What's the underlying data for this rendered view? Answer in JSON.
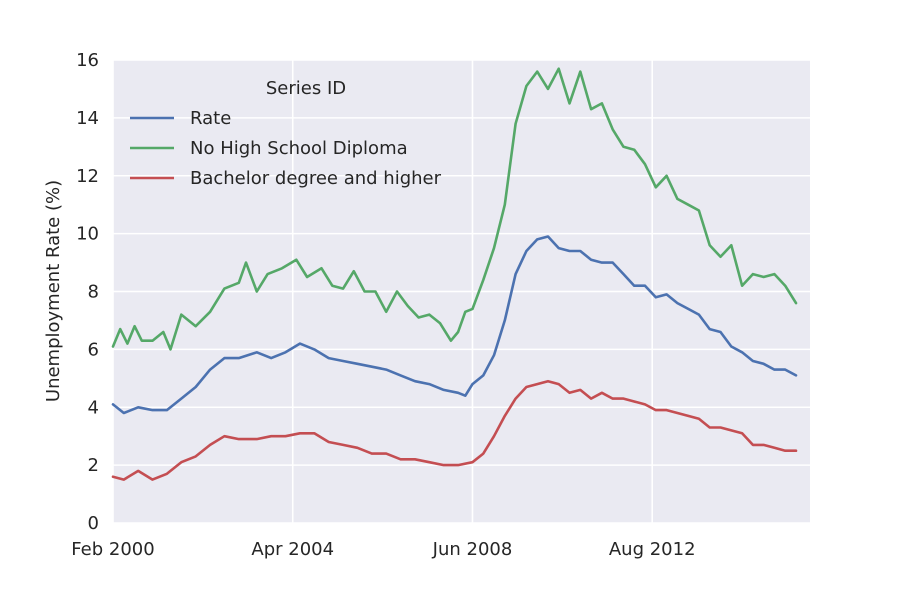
{
  "chart_data": {
    "type": "line",
    "title": "",
    "xlabel": "",
    "ylabel": "Unemployment Rate (%)",
    "x_start": "Feb 2000",
    "x_end": "Dec 2015",
    "x_ticks": [
      {
        "date": "2000-02",
        "label": "Feb 2000"
      },
      {
        "date": "2004-04",
        "label": "Apr 2004"
      },
      {
        "date": "2008-06",
        "label": "Jun 2008"
      },
      {
        "date": "2012-08",
        "label": "Aug 2012"
      }
    ],
    "ylim": [
      0,
      16
    ],
    "y_ticks": [
      0,
      2,
      4,
      6,
      8,
      10,
      12,
      14,
      16
    ],
    "grid": true,
    "legend": {
      "title": "Series ID",
      "position": "upper-left"
    },
    "series": [
      {
        "name": "Rate",
        "color": "#4c72b0",
        "points": [
          [
            "2000-02",
            4.1
          ],
          [
            "2000-05",
            3.8
          ],
          [
            "2000-09",
            4.0
          ],
          [
            "2001-01",
            3.9
          ],
          [
            "2001-05",
            3.9
          ],
          [
            "2001-09",
            4.3
          ],
          [
            "2002-01",
            4.7
          ],
          [
            "2002-05",
            5.3
          ],
          [
            "2002-09",
            5.7
          ],
          [
            "2003-01",
            5.7
          ],
          [
            "2003-06",
            5.9
          ],
          [
            "2003-10",
            5.7
          ],
          [
            "2004-02",
            5.9
          ],
          [
            "2004-06",
            6.2
          ],
          [
            "2004-10",
            6.0
          ],
          [
            "2005-02",
            5.7
          ],
          [
            "2005-06",
            5.6
          ],
          [
            "2005-10",
            5.5
          ],
          [
            "2006-02",
            5.4
          ],
          [
            "2006-06",
            5.3
          ],
          [
            "2006-10",
            5.1
          ],
          [
            "2007-02",
            4.9
          ],
          [
            "2007-06",
            4.8
          ],
          [
            "2007-10",
            4.6
          ],
          [
            "2008-02",
            4.5
          ],
          [
            "2008-04",
            4.4
          ],
          [
            "2008-06",
            4.8
          ],
          [
            "2008-09",
            5.1
          ],
          [
            "2008-12",
            5.8
          ],
          [
            "2009-03",
            7.0
          ],
          [
            "2009-06",
            8.6
          ],
          [
            "2009-09",
            9.4
          ],
          [
            "2009-12",
            9.8
          ],
          [
            "2010-03",
            9.9
          ],
          [
            "2010-06",
            9.5
          ],
          [
            "2010-09",
            9.4
          ],
          [
            "2010-12",
            9.4
          ],
          [
            "2011-03",
            9.1
          ],
          [
            "2011-06",
            9.0
          ],
          [
            "2011-09",
            9.0
          ],
          [
            "2011-12",
            8.6
          ],
          [
            "2012-03",
            8.2
          ],
          [
            "2012-06",
            8.2
          ],
          [
            "2012-09",
            7.8
          ],
          [
            "2012-12",
            7.9
          ],
          [
            "2013-03",
            7.6
          ],
          [
            "2013-06",
            7.4
          ],
          [
            "2013-09",
            7.2
          ],
          [
            "2013-12",
            6.7
          ],
          [
            "2014-03",
            6.6
          ],
          [
            "2014-06",
            6.1
          ],
          [
            "2014-09",
            5.9
          ],
          [
            "2014-12",
            5.6
          ],
          [
            "2015-03",
            5.5
          ],
          [
            "2015-06",
            5.3
          ],
          [
            "2015-09",
            5.3
          ],
          [
            "2015-12",
            5.1
          ]
        ]
      },
      {
        "name": "No High School Diploma",
        "color": "#55a868",
        "points": [
          [
            "2000-02",
            6.1
          ],
          [
            "2000-04",
            6.7
          ],
          [
            "2000-06",
            6.2
          ],
          [
            "2000-08",
            6.8
          ],
          [
            "2000-10",
            6.3
          ],
          [
            "2001-01",
            6.3
          ],
          [
            "2001-04",
            6.6
          ],
          [
            "2001-06",
            6.0
          ],
          [
            "2001-09",
            7.2
          ],
          [
            "2002-01",
            6.8
          ],
          [
            "2002-05",
            7.3
          ],
          [
            "2002-09",
            8.1
          ],
          [
            "2003-01",
            8.3
          ],
          [
            "2003-03",
            9.0
          ],
          [
            "2003-06",
            8.0
          ],
          [
            "2003-09",
            8.6
          ],
          [
            "2004-01",
            8.8
          ],
          [
            "2004-05",
            9.1
          ],
          [
            "2004-08",
            8.5
          ],
          [
            "2004-12",
            8.8
          ],
          [
            "2005-03",
            8.2
          ],
          [
            "2005-06",
            8.1
          ],
          [
            "2005-09",
            8.7
          ],
          [
            "2005-12",
            8.0
          ],
          [
            "2006-03",
            8.0
          ],
          [
            "2006-06",
            7.3
          ],
          [
            "2006-09",
            8.0
          ],
          [
            "2006-12",
            7.5
          ],
          [
            "2007-03",
            7.1
          ],
          [
            "2007-06",
            7.2
          ],
          [
            "2007-09",
            6.9
          ],
          [
            "2007-12",
            6.3
          ],
          [
            "2008-02",
            6.6
          ],
          [
            "2008-04",
            7.3
          ],
          [
            "2008-06",
            7.4
          ],
          [
            "2008-09",
            8.4
          ],
          [
            "2008-12",
            9.5
          ],
          [
            "2009-03",
            11.0
          ],
          [
            "2009-06",
            13.8
          ],
          [
            "2009-09",
            15.1
          ],
          [
            "2009-12",
            15.6
          ],
          [
            "2010-03",
            15.0
          ],
          [
            "2010-06",
            15.7
          ],
          [
            "2010-09",
            14.5
          ],
          [
            "2010-12",
            15.6
          ],
          [
            "2011-03",
            14.3
          ],
          [
            "2011-06",
            14.5
          ],
          [
            "2011-09",
            13.6
          ],
          [
            "2011-12",
            13.0
          ],
          [
            "2012-03",
            12.9
          ],
          [
            "2012-06",
            12.4
          ],
          [
            "2012-09",
            11.6
          ],
          [
            "2012-12",
            12.0
          ],
          [
            "2013-03",
            11.2
          ],
          [
            "2013-06",
            11.0
          ],
          [
            "2013-09",
            10.8
          ],
          [
            "2013-12",
            9.6
          ],
          [
            "2014-03",
            9.2
          ],
          [
            "2014-06",
            9.6
          ],
          [
            "2014-09",
            8.2
          ],
          [
            "2014-12",
            8.6
          ],
          [
            "2015-03",
            8.5
          ],
          [
            "2015-06",
            8.6
          ],
          [
            "2015-09",
            8.2
          ],
          [
            "2015-12",
            7.6
          ]
        ]
      },
      {
        "name": "Bachelor degree and higher",
        "color": "#c44e52",
        "points": [
          [
            "2000-02",
            1.6
          ],
          [
            "2000-05",
            1.5
          ],
          [
            "2000-09",
            1.8
          ],
          [
            "2001-01",
            1.5
          ],
          [
            "2001-05",
            1.7
          ],
          [
            "2001-09",
            2.1
          ],
          [
            "2002-01",
            2.3
          ],
          [
            "2002-05",
            2.7
          ],
          [
            "2002-09",
            3.0
          ],
          [
            "2003-01",
            2.9
          ],
          [
            "2003-06",
            2.9
          ],
          [
            "2003-10",
            3.0
          ],
          [
            "2004-02",
            3.0
          ],
          [
            "2004-06",
            3.1
          ],
          [
            "2004-10",
            3.1
          ],
          [
            "2005-02",
            2.8
          ],
          [
            "2005-06",
            2.7
          ],
          [
            "2005-10",
            2.6
          ],
          [
            "2006-02",
            2.4
          ],
          [
            "2006-06",
            2.4
          ],
          [
            "2006-10",
            2.2
          ],
          [
            "2007-02",
            2.2
          ],
          [
            "2007-06",
            2.1
          ],
          [
            "2007-10",
            2.0
          ],
          [
            "2008-02",
            2.0
          ],
          [
            "2008-06",
            2.1
          ],
          [
            "2008-09",
            2.4
          ],
          [
            "2008-12",
            3.0
          ],
          [
            "2009-03",
            3.7
          ],
          [
            "2009-06",
            4.3
          ],
          [
            "2009-09",
            4.7
          ],
          [
            "2009-12",
            4.8
          ],
          [
            "2010-03",
            4.9
          ],
          [
            "2010-06",
            4.8
          ],
          [
            "2010-09",
            4.5
          ],
          [
            "2010-12",
            4.6
          ],
          [
            "2011-03",
            4.3
          ],
          [
            "2011-06",
            4.5
          ],
          [
            "2011-09",
            4.3
          ],
          [
            "2011-12",
            4.3
          ],
          [
            "2012-03",
            4.2
          ],
          [
            "2012-06",
            4.1
          ],
          [
            "2012-09",
            3.9
          ],
          [
            "2012-12",
            3.9
          ],
          [
            "2013-03",
            3.8
          ],
          [
            "2013-06",
            3.7
          ],
          [
            "2013-09",
            3.6
          ],
          [
            "2013-12",
            3.3
          ],
          [
            "2014-03",
            3.3
          ],
          [
            "2014-06",
            3.2
          ],
          [
            "2014-09",
            3.1
          ],
          [
            "2014-12",
            2.7
          ],
          [
            "2015-03",
            2.7
          ],
          [
            "2015-06",
            2.6
          ],
          [
            "2015-09",
            2.5
          ],
          [
            "2015-12",
            2.5
          ]
        ]
      }
    ]
  }
}
